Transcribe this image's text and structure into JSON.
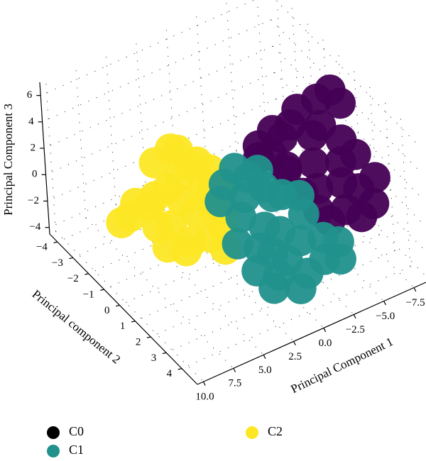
{
  "chart_data": {
    "type": "scatter",
    "projection": "3d",
    "title": "",
    "xlabel": "Principal Component 1",
    "ylabel": "Principal component 2",
    "zlabel": "Principal Component 3",
    "xlim": [
      -8.5,
      10.5
    ],
    "ylim": [
      -4.5,
      5
    ],
    "zlim": [
      -4.5,
      7
    ],
    "xticks": [
      -7.5,
      -5.0,
      -2.5,
      0.0,
      2.5,
      5.0,
      7.5,
      10.0
    ],
    "xtick_labels": [
      "−7.5",
      "−5.0",
      "−2.5",
      "0.0",
      "2.5",
      "5.0",
      "7.5",
      "10.0"
    ],
    "yticks": [
      -4,
      -3,
      -2,
      -1,
      0,
      1,
      2,
      3,
      4
    ],
    "ytick_labels": [
      "−4",
      "−3",
      "−2",
      "−1",
      "0",
      "1",
      "2",
      "3",
      "4"
    ],
    "zticks": [
      -4,
      -2,
      0,
      2,
      4,
      6
    ],
    "ztick_labels": [
      "−4",
      "−2",
      "0",
      "2",
      "4",
      "6"
    ],
    "grid": true,
    "legend_position": "bottom",
    "series": [
      {
        "name": "C0",
        "color": "#440154",
        "legend_color": "#000000",
        "points": [
          [
            -5.5,
            1.0,
            3.8
          ],
          [
            -4.0,
            0.2,
            3.5
          ],
          [
            -6.5,
            1.5,
            2.9
          ],
          [
            -5.0,
            0.8,
            3.0
          ],
          [
            -3.5,
            0.0,
            2.5
          ],
          [
            -6.0,
            1.8,
            1.8
          ],
          [
            -4.5,
            1.2,
            1.6
          ],
          [
            -3.0,
            0.6,
            1.2
          ],
          [
            -5.5,
            2.2,
            0.9
          ],
          [
            -4.0,
            1.8,
            0.6
          ],
          [
            -2.5,
            1.0,
            1.6
          ],
          [
            -6.5,
            2.5,
            0.4
          ],
          [
            -7.5,
            2.8,
            1.2
          ],
          [
            -5.0,
            2.8,
            -0.2
          ],
          [
            -3.5,
            2.2,
            -0.4
          ],
          [
            -6.0,
            3.0,
            -0.9
          ],
          [
            -2.0,
            0.5,
            2.4
          ],
          [
            -4.5,
            0.3,
            4.6
          ],
          [
            -5.8,
            0.6,
            5.2
          ],
          [
            -6.8,
            0.7,
            5.6
          ],
          [
            -7.2,
            1.0,
            4.8
          ],
          [
            -3.0,
            -0.2,
            3.0
          ],
          [
            -2.0,
            -0.4,
            2.0
          ],
          [
            -4.0,
            2.5,
            -1.0
          ],
          [
            -7.0,
            2.0,
            2.2
          ],
          [
            -1.5,
            0.0,
            1.8
          ],
          [
            -3.0,
            1.6,
            0.4
          ],
          [
            -6.8,
            3.2,
            0.0
          ]
        ]
      },
      {
        "name": "C1",
        "color": "#21918c",
        "legend_color": "#21918c",
        "points": [
          [
            0.0,
            0.5,
            1.5
          ],
          [
            1.0,
            1.0,
            1.0
          ],
          [
            -1.0,
            1.2,
            0.5
          ],
          [
            2.0,
            1.5,
            0.5
          ],
          [
            0.5,
            1.8,
            -0.5
          ],
          [
            -0.5,
            2.0,
            -1.0
          ],
          [
            1.5,
            2.2,
            -1.2
          ],
          [
            -1.5,
            2.5,
            -1.5
          ],
          [
            0.0,
            2.8,
            -2.0
          ],
          [
            -2.5,
            2.0,
            -0.5
          ],
          [
            -3.0,
            2.8,
            -1.5
          ],
          [
            1.0,
            3.0,
            -2.5
          ],
          [
            -1.0,
            3.3,
            -2.8
          ],
          [
            2.5,
            2.8,
            -1.8
          ],
          [
            3.0,
            1.0,
            1.5
          ],
          [
            -2.0,
            1.0,
            0.0
          ],
          [
            -3.5,
            3.5,
            -2.5
          ],
          [
            0.5,
            0.0,
            1.8
          ],
          [
            -0.8,
            0.8,
            0.8
          ],
          [
            2.0,
            0.5,
            1.8
          ],
          [
            -2.2,
            3.5,
            -2.0
          ],
          [
            0.0,
            3.6,
            -3.2
          ],
          [
            -4.0,
            3.0,
            -2.0
          ],
          [
            1.8,
            3.3,
            -2.8
          ],
          [
            -1.0,
            0.3,
            1.4
          ],
          [
            3.0,
            2.0,
            -0.5
          ],
          [
            -2.8,
            1.5,
            0.2
          ],
          [
            0.8,
            2.5,
            -1.5
          ]
        ]
      },
      {
        "name": "C2",
        "color": "#fde725",
        "legend_color": "#fde725",
        "points": [
          [
            5.0,
            0.0,
            5.0
          ],
          [
            4.5,
            0.3,
            4.0
          ],
          [
            5.0,
            0.0,
            3.0
          ],
          [
            4.0,
            0.8,
            3.0
          ],
          [
            5.5,
            0.5,
            2.0
          ],
          [
            6.0,
            0.0,
            2.5
          ],
          [
            6.5,
            -0.5,
            1.5
          ],
          [
            7.0,
            -0.5,
            1.0
          ],
          [
            7.5,
            -1.0,
            0.8
          ],
          [
            8.0,
            -1.0,
            0.0
          ],
          [
            6.5,
            0.5,
            0.5
          ],
          [
            5.0,
            1.0,
            1.5
          ],
          [
            4.0,
            1.3,
            2.0
          ],
          [
            3.5,
            1.5,
            0.5
          ],
          [
            4.5,
            1.5,
            0.0
          ],
          [
            3.0,
            0.5,
            2.0
          ],
          [
            2.5,
            0.0,
            2.5
          ],
          [
            3.5,
            0.0,
            3.5
          ],
          [
            6.0,
            -0.8,
            3.5
          ],
          [
            7.0,
            0.0,
            0.0
          ],
          [
            5.5,
            1.0,
            -0.5
          ],
          [
            6.0,
            1.0,
            -1.0
          ],
          [
            5.0,
            -0.5,
            4.5
          ],
          [
            4.0,
            2.0,
            -0.5
          ],
          [
            8.5,
            -1.2,
            -0.5
          ],
          [
            2.0,
            0.2,
            1.5
          ],
          [
            3.0,
            1.2,
            1.0
          ],
          [
            7.0,
            0.6,
            -0.8
          ]
        ]
      }
    ]
  }
}
